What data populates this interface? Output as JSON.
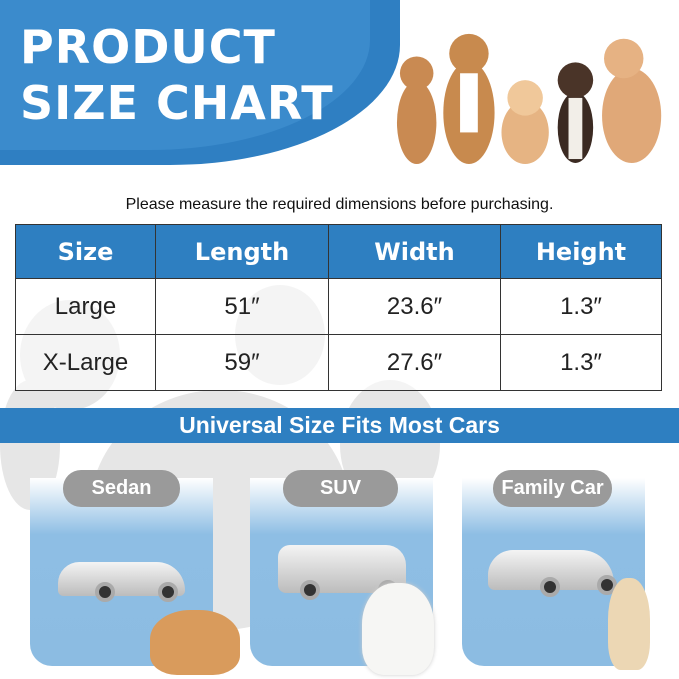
{
  "header": {
    "title_line1": "PRODUCT",
    "title_line2": "SIZE CHART"
  },
  "note": "Please measure the required dimensions before purchasing.",
  "table": {
    "headers": [
      "Size",
      "Length",
      "Width",
      "Height"
    ],
    "rows": [
      [
        "Large",
        "51″",
        "23.6″",
        "1.3″"
      ],
      [
        "X-Large",
        "59″",
        "27.6″",
        "1.3″"
      ]
    ]
  },
  "banner": "Universal Size Fits Most Cars",
  "cars": [
    {
      "label": "Sedan"
    },
    {
      "label": "SUV"
    },
    {
      "label": "Family Car"
    }
  ],
  "colors": {
    "primary": "#2e7fc1",
    "card": "#8cbce2",
    "pill": "#9a9a9a"
  }
}
